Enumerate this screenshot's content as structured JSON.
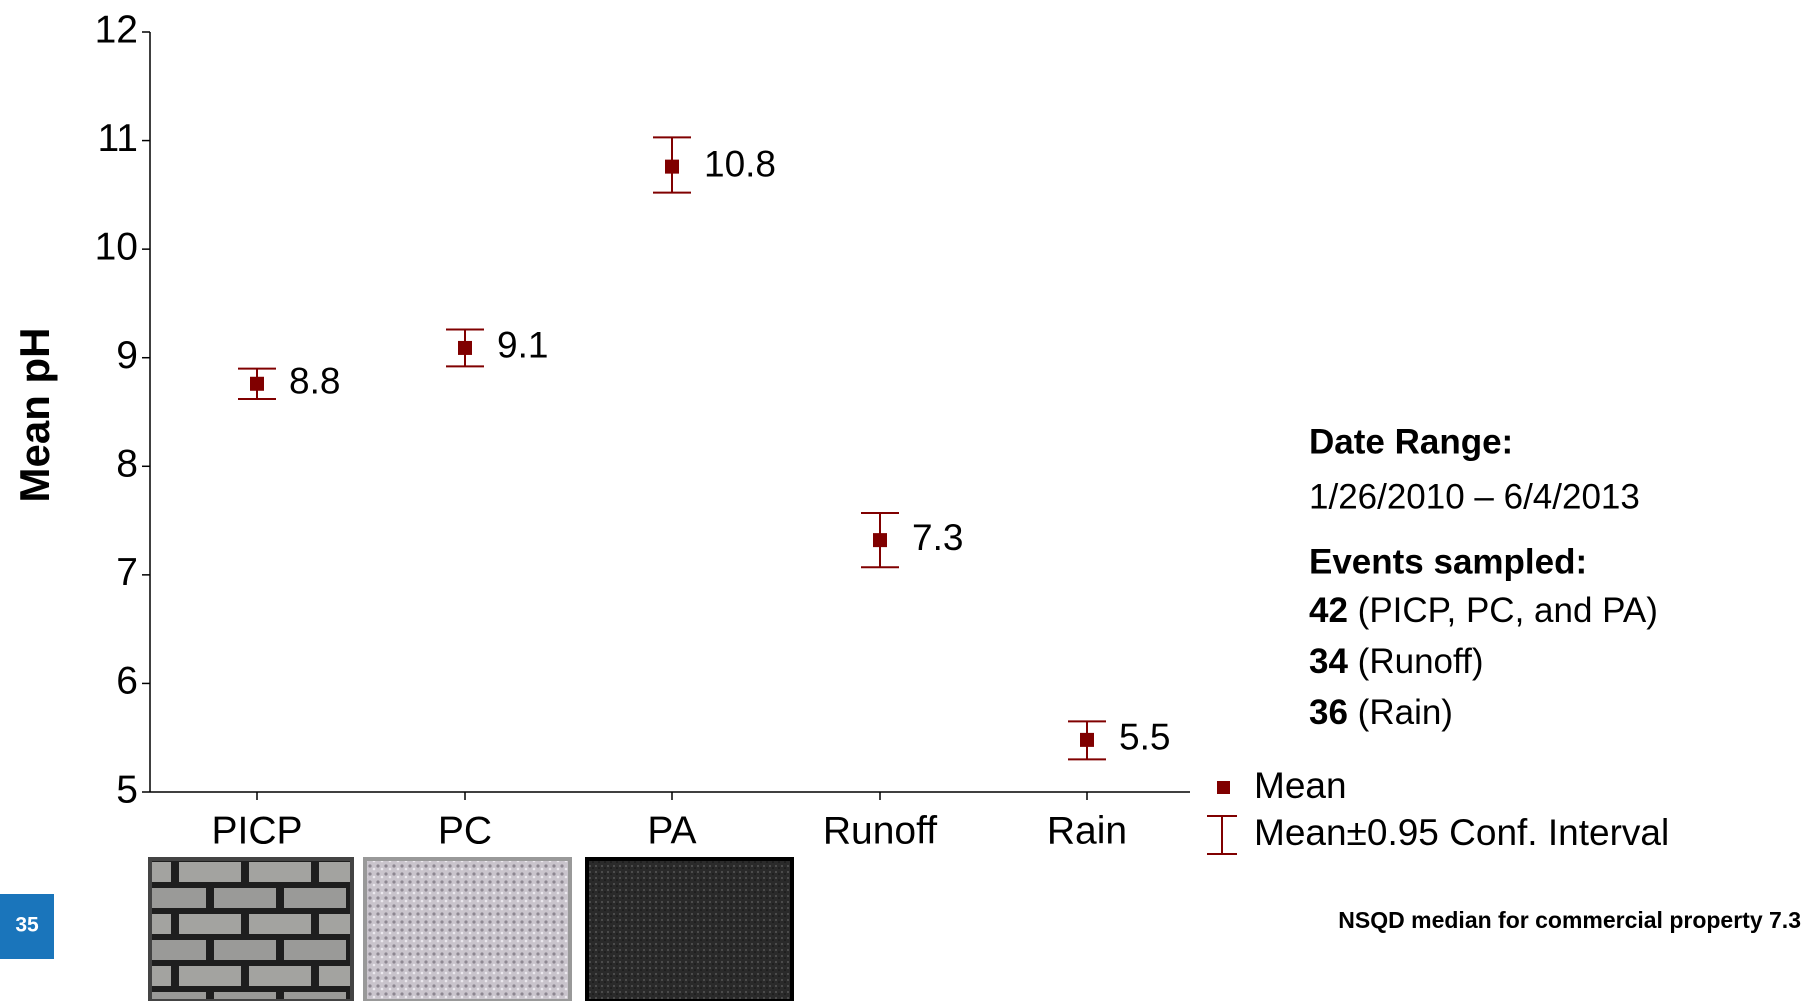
{
  "chart_data": {
    "type": "errorbar",
    "y_label": "Mean pH",
    "categories": [
      "PICP",
      "PC",
      "PA",
      "Runoff",
      "Rain"
    ],
    "values": [
      8.76,
      9.09,
      10.76,
      7.32,
      5.48
    ],
    "value_labels": [
      "8.8",
      "9.1",
      "10.8",
      "7.3",
      "5.5"
    ],
    "ci_low": [
      8.62,
      8.92,
      10.52,
      7.07,
      5.3
    ],
    "ci_high": [
      8.9,
      9.26,
      11.03,
      7.57,
      5.65
    ],
    "color": "#800000",
    "ylim": [
      5,
      12
    ],
    "yticks": [
      5,
      6,
      7,
      8,
      9,
      10,
      11,
      12
    ],
    "legend": {
      "mean": "Mean",
      "interval": "Mean±0.95 Conf. Interval"
    },
    "annotations": {
      "date_range_title": "Date Range:",
      "date_range": "1/26/2010 – 6/4/2013",
      "events_title": "Events sampled:",
      "events": [
        {
          "count": 42,
          "text": "(PICP, PC, and PA)"
        },
        {
          "count": 34,
          "text": "(Runoff)"
        },
        {
          "count": 36,
          "text": "(Rain)"
        }
      ],
      "note": "NSQD median for commercial property 7.3"
    }
  },
  "page_number": "35"
}
